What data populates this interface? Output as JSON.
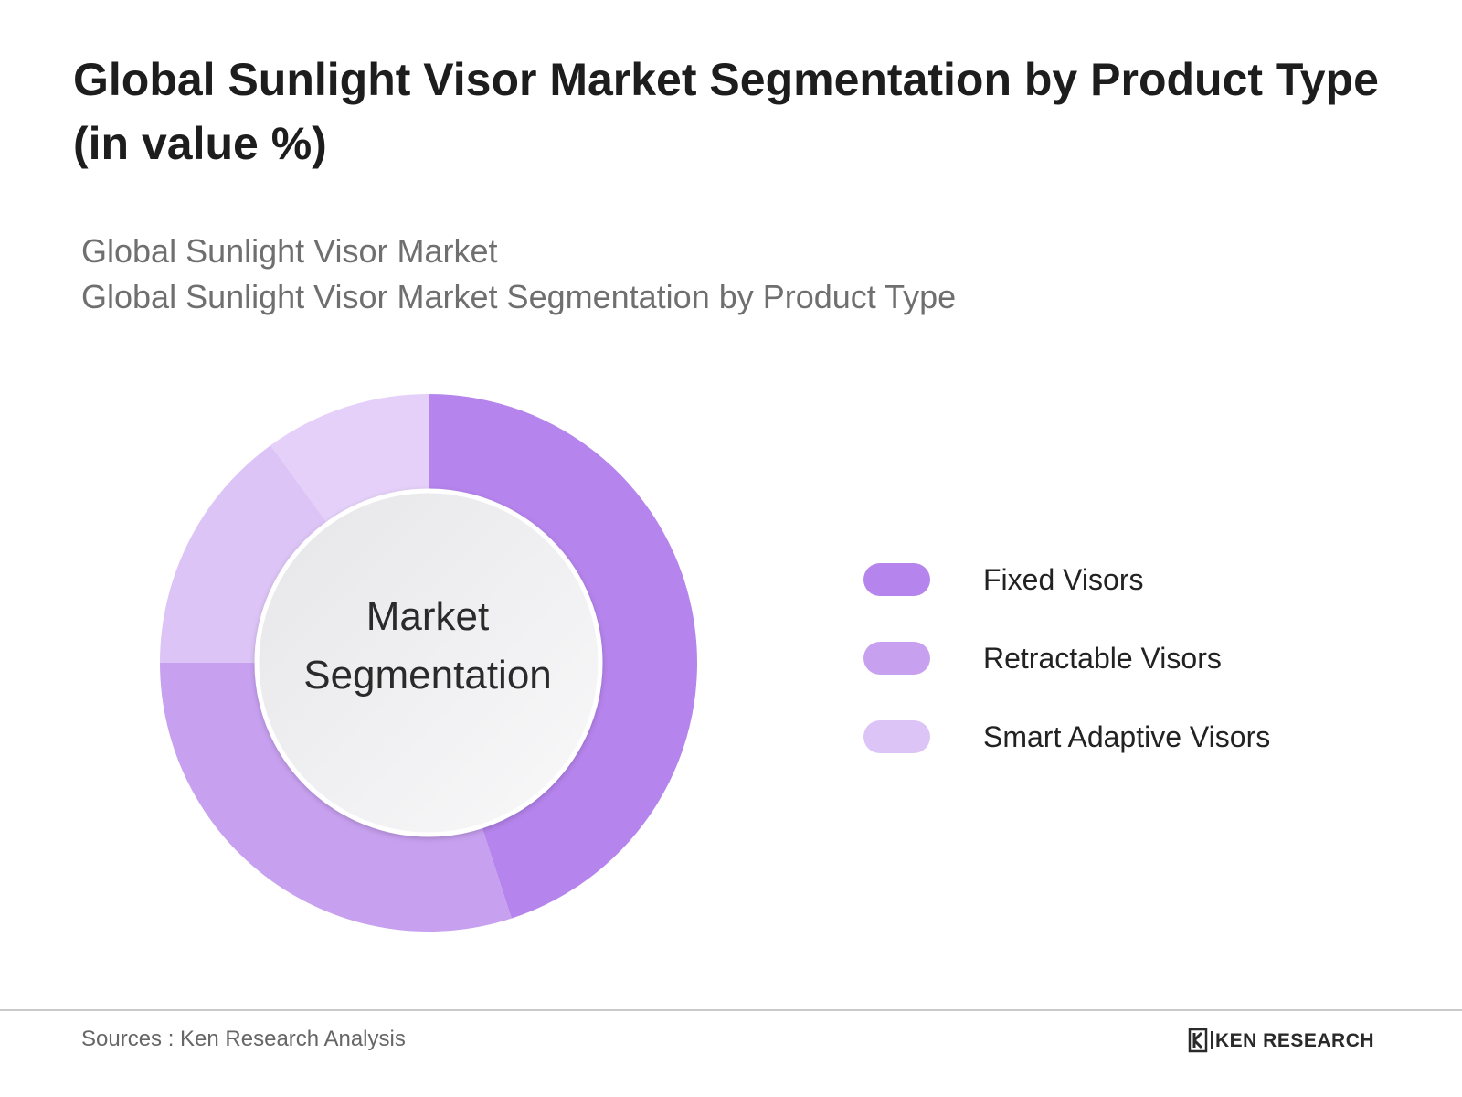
{
  "title": "Global Sunlight Visor Market Segmentation by Product Type (in value %)",
  "subtitle": {
    "line1": "Global Sunlight Visor Market",
    "line2": "Global Sunlight Visor Market Segmentation by Product Type"
  },
  "center_label": {
    "line1": "Market",
    "line2": "Segmentation"
  },
  "chart_data": {
    "type": "pie",
    "style": "donut",
    "title": "Global Sunlight Visor Market Segmentation by Product Type (in value %)",
    "categories": [
      "Fixed Visors",
      "Retractable Visors",
      "Smart Adaptive Visors"
    ],
    "segments": [
      {
        "name": "Fixed Visors",
        "value": 45,
        "color": "#b584ec"
      },
      {
        "name": "Retractable Visors",
        "value": 30,
        "color": "#c7a0ef"
      },
      {
        "name": "Smart Adaptive Visors",
        "value": 25,
        "color": "#dcc4f6",
        "sub_values": [
          15,
          10
        ]
      }
    ],
    "legend_position": "right"
  },
  "colors": {
    "fixed": "#b584ec",
    "retractable": "#c7a0ef",
    "smart_a": "#dcc4f6",
    "smart_b": "#e4d0f8"
  },
  "footer": {
    "sources": "Sources : Ken Research Analysis",
    "brand": "KEN RESEARCH"
  }
}
